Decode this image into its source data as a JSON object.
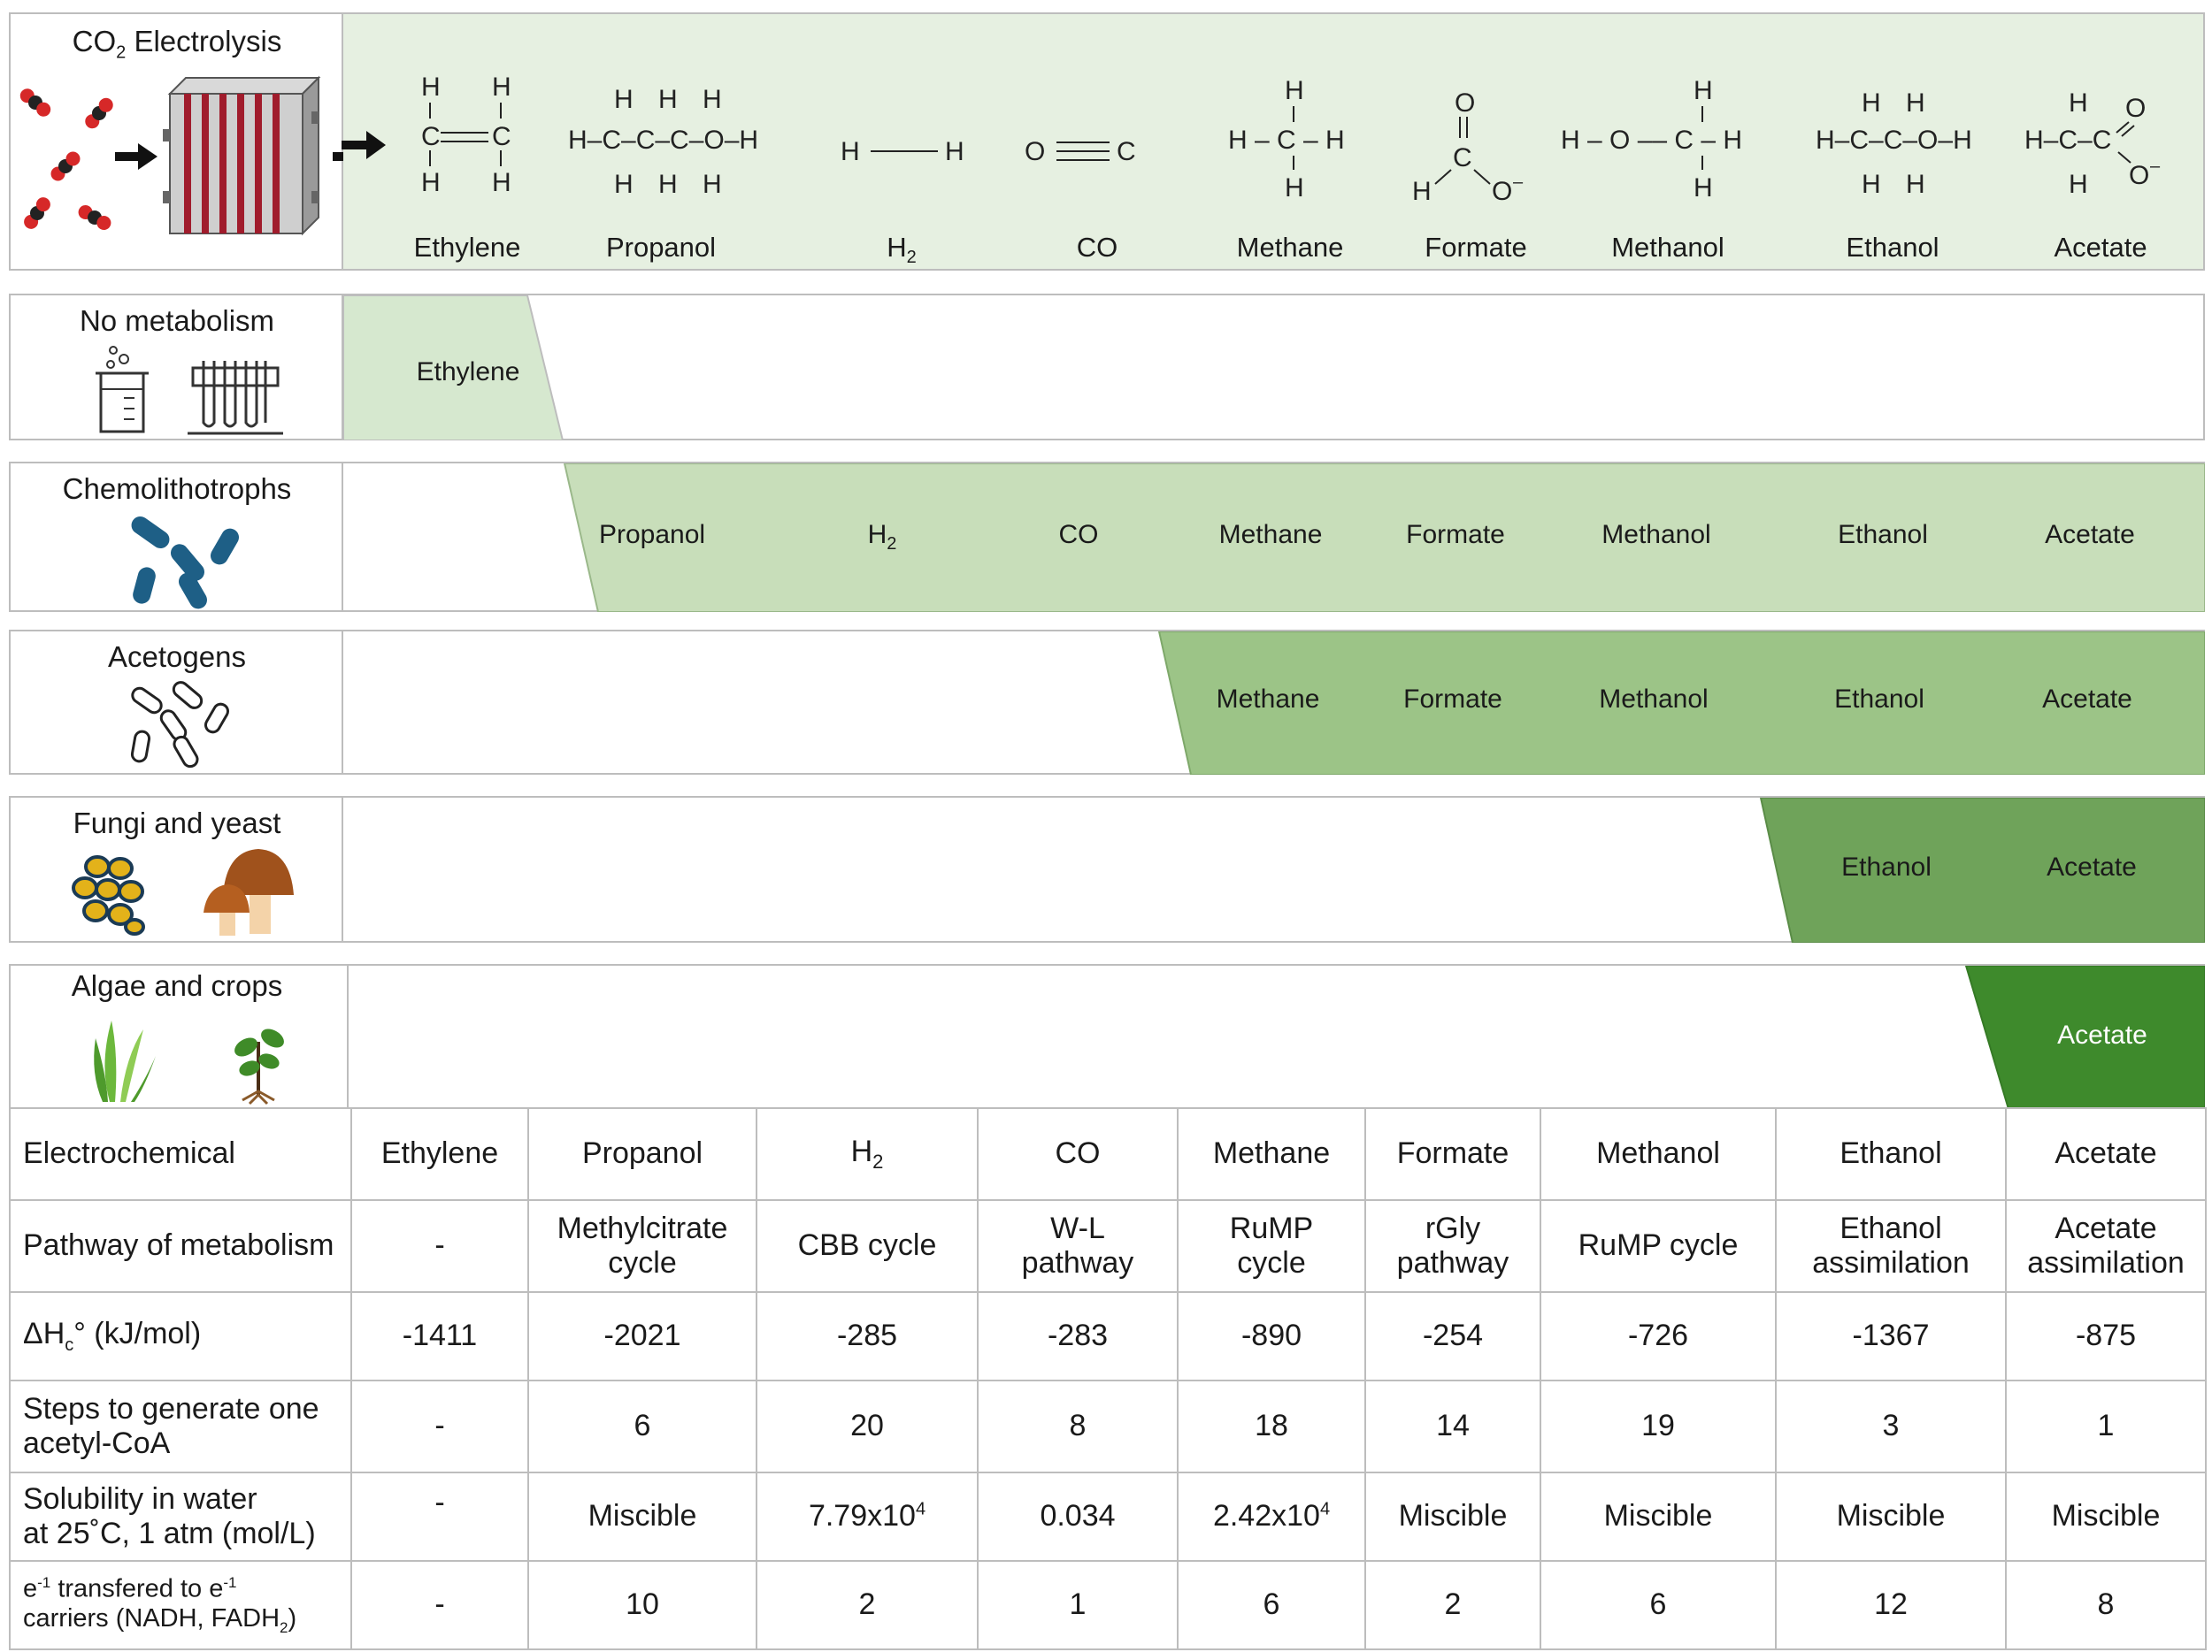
{
  "electrolysis": {
    "title_pre": "CO",
    "title_sub": "2",
    "title_post": " Electrolysis",
    "molecules": [
      {
        "name": "Ethylene",
        "icon": "ethylene-structure"
      },
      {
        "name": "Propanol",
        "icon": "propanol-structure"
      },
      {
        "name": "H",
        "sub": "2",
        "icon": "hydrogen-structure"
      },
      {
        "name": "CO",
        "icon": "carbon-monoxide-structure"
      },
      {
        "name": "Methane",
        "icon": "methane-structure"
      },
      {
        "name": "Formate",
        "icon": "formate-structure"
      },
      {
        "name": "Methanol",
        "icon": "methanol-structure"
      },
      {
        "name": "Ethanol",
        "icon": "ethanol-structure"
      },
      {
        "name": "Acetate",
        "icon": "acetate-structure"
      }
    ]
  },
  "organisms": [
    {
      "title": "No metabolism",
      "icon": "lab-glassware-icon",
      "band_color": "#d6e8cf",
      "products": [
        "Ethylene"
      ]
    },
    {
      "title": "Chemolithotrophs",
      "icon": "rod-bacteria-icon",
      "band_color": "#c8deba",
      "products": [
        "Propanol",
        "H",
        "CO",
        "Methane",
        "Formate",
        "Methanol",
        "Ethanol",
        "Acetate"
      ],
      "h2_sub": "2"
    },
    {
      "title": "Acetogens",
      "icon": "outlined-bacteria-icon",
      "band_color": "#9cc487",
      "products": [
        "Methane",
        "Formate",
        "Methanol",
        "Ethanol",
        "Acetate"
      ]
    },
    {
      "title": "Fungi and yeast",
      "icon": "yeast-mushroom-icon",
      "band_color": "#6fa35a",
      "products": [
        "Ethanol",
        "Acetate"
      ]
    },
    {
      "title": "Algae and crops",
      "icon": "plant-icon",
      "band_color": "#3e8a2c",
      "products": [
        "Acetate"
      ]
    }
  ],
  "table": {
    "header": {
      "label": "Electrochemical",
      "cols": [
        "Ethylene",
        "Propanol",
        "H",
        "CO",
        "Methane",
        "Formate",
        "Methanol",
        "Ethanol",
        "Acetate"
      ],
      "h2_sub": "2"
    },
    "rows": [
      {
        "label": [
          "Pathway of metabolism"
        ],
        "cells": [
          [
            "-"
          ],
          [
            "Methylcitrate",
            "cycle"
          ],
          [
            "CBB cycle"
          ],
          [
            "W-L",
            "pathway"
          ],
          [
            "RuMP",
            "cycle"
          ],
          [
            "rGly",
            "pathway"
          ],
          [
            "RuMP cycle"
          ],
          [
            "Ethanol",
            "assimilation"
          ],
          [
            "Acetate",
            "assimilation"
          ]
        ]
      },
      {
        "label_pre": "ΔH",
        "label_sub": "c",
        "label_post": "° (kJ/mol)",
        "cells": [
          [
            "-1411"
          ],
          [
            "-2021"
          ],
          [
            "-285"
          ],
          [
            "-283"
          ],
          [
            "-890"
          ],
          [
            "-254"
          ],
          [
            "-726"
          ],
          [
            "-1367"
          ],
          [
            "-875"
          ]
        ]
      },
      {
        "label": [
          "Steps to generate one",
          "acetyl-CoA"
        ],
        "cells": [
          [
            "-"
          ],
          [
            "6"
          ],
          [
            "20"
          ],
          [
            "8"
          ],
          [
            "18"
          ],
          [
            "14"
          ],
          [
            "19"
          ],
          [
            "3"
          ],
          [
            "1"
          ]
        ]
      },
      {
        "label": [
          "Solubility in water",
          "at 25˚C, 1 atm (mol/L)"
        ],
        "cells": [
          [
            "-"
          ],
          [
            "Miscible"
          ],
          [
            "7.79x10",
            "4"
          ],
          [
            "0.034"
          ],
          [
            "2.42x10",
            "4"
          ],
          [
            "Miscible"
          ],
          [
            "Miscible"
          ],
          [
            "Miscible"
          ],
          [
            "Miscible"
          ]
        ]
      },
      {
        "label_a": "e",
        "label_a_sup": "-1",
        "label_b": " transfered to e",
        "label_b_sup": "-1",
        "label_c": "carriers (NADH, FADH",
        "label_c_sub": "2",
        "label_d": ")",
        "cells": [
          [
            "-"
          ],
          [
            "10"
          ],
          [
            "2"
          ],
          [
            "1"
          ],
          [
            "6"
          ],
          [
            "2"
          ],
          [
            "6"
          ],
          [
            "12"
          ],
          [
            "8"
          ]
        ]
      }
    ]
  }
}
